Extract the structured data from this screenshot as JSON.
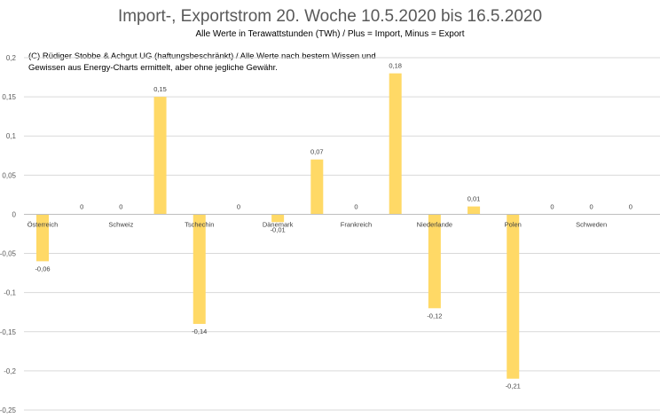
{
  "chart_data": {
    "type": "bar",
    "title": "Import-, Exportstrom 20. Woche 10.5.2020 bis 16.5.2020",
    "subtitle": "Alle Werte in Terawattstunden (TWh) / Plus = Import, Minus = Export",
    "annotation": "(C) Rüdiger Stobbe & Achgut UG (haftungsbeschränkt) / Alle Werte nach bestem Wissen und Gewissen aus Energy-Charts ermittelt, aber ohne jegliche Gewähr.",
    "ylim": [
      -0.25,
      0.2
    ],
    "yticks": [
      0.2,
      0.15,
      0.1,
      0.05,
      0,
      -0.05,
      -0.1,
      -0.15,
      -0.2,
      -0.25
    ],
    "ytick_labels": [
      "0,2",
      "0,15",
      "0,1",
      "0,05",
      "0",
      "-0,05",
      "-0,1",
      "-0,15",
      "-0,2",
      "-0,25"
    ],
    "grid": true,
    "bar_color": "#ffd966",
    "categories": [
      "Österreich",
      "Schweiz",
      "Tschechin",
      "Dänemark",
      "Frankreich",
      "Niederlande",
      "Polen",
      "Schweden"
    ],
    "bars": [
      {
        "value": -0.06,
        "label": "-0,06"
      },
      {
        "value": 0,
        "label": "0"
      },
      {
        "value": 0,
        "label": "0"
      },
      {
        "value": 0.15,
        "label": "0,15"
      },
      {
        "value": -0.14,
        "label": "-0,14"
      },
      {
        "value": 0,
        "label": "0"
      },
      {
        "value": -0.01,
        "label": "-0,01"
      },
      {
        "value": 0.07,
        "label": "0,07"
      },
      {
        "value": 0,
        "label": "0"
      },
      {
        "value": 0.18,
        "label": "0,18"
      },
      {
        "value": -0.12,
        "label": "-0,12"
      },
      {
        "value": 0.01,
        "label": "0,01"
      },
      {
        "value": -0.21,
        "label": "-0,21"
      },
      {
        "value": 0,
        "label": "0"
      },
      {
        "value": 0,
        "label": "0"
      },
      {
        "value": 0,
        "label": "0"
      }
    ]
  }
}
